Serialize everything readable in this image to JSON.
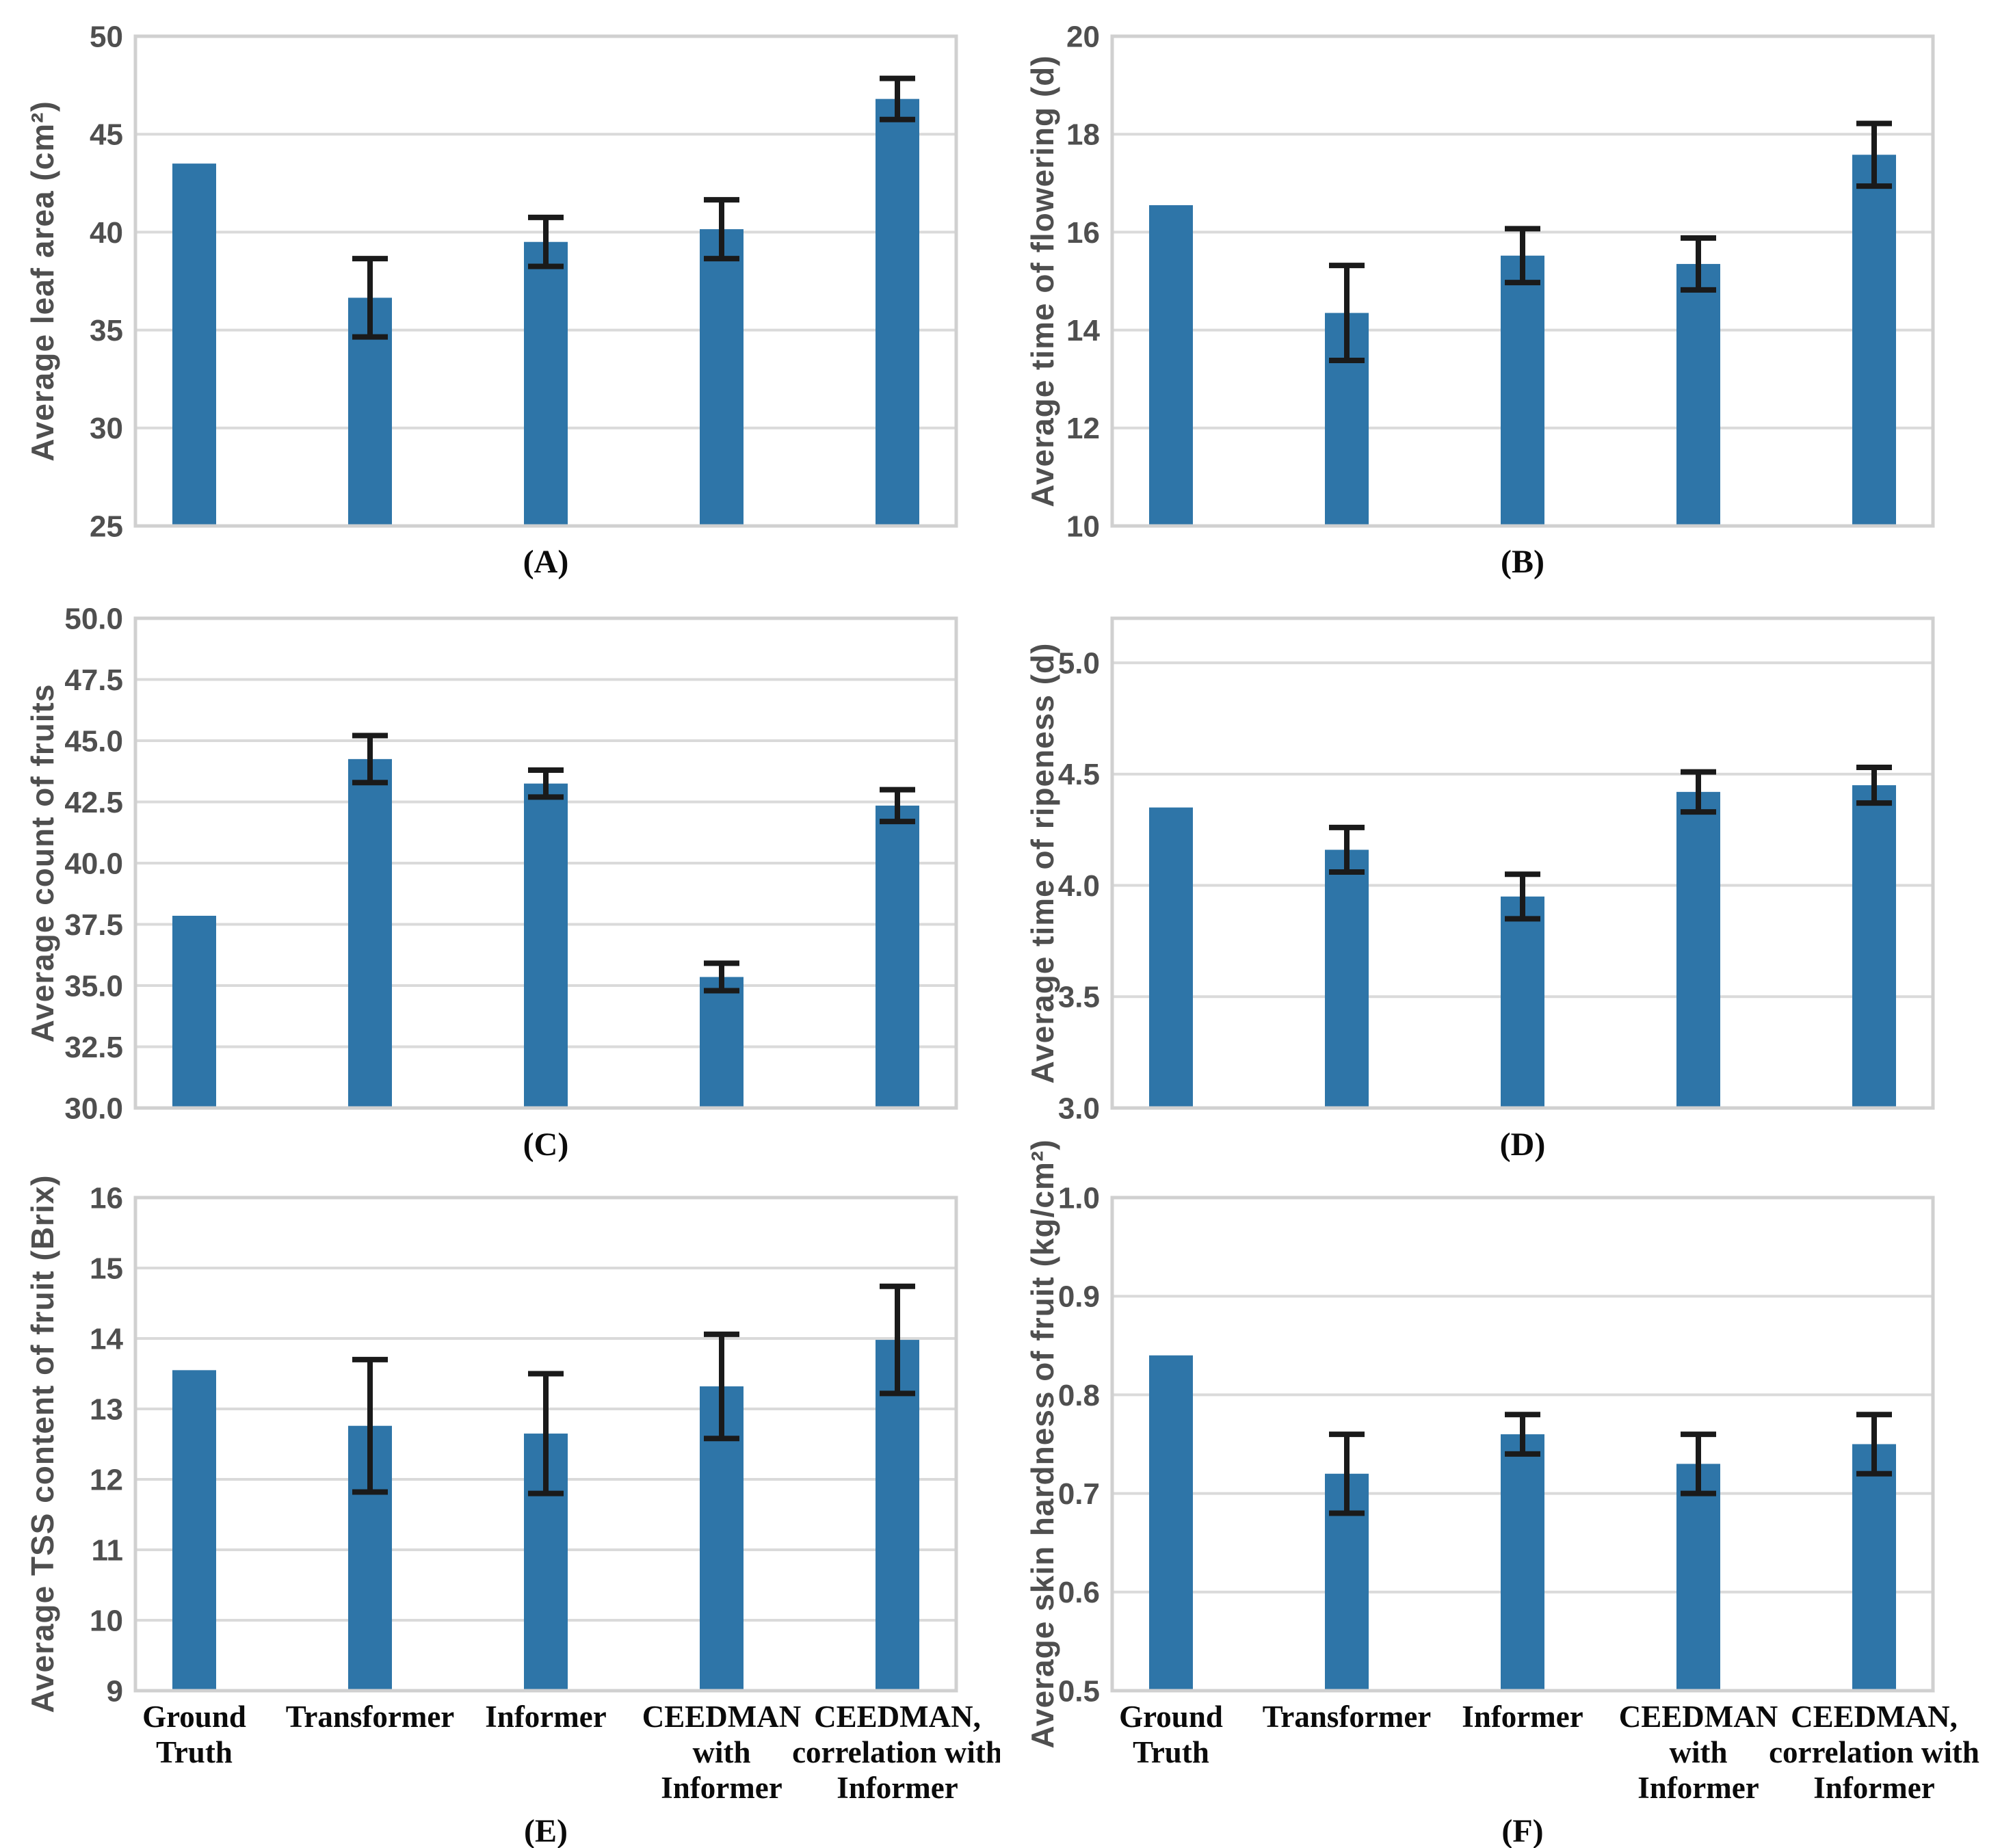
{
  "figure": {
    "background": "#ffffff",
    "bar_color": "#2e75a8",
    "error_bar_color": "#1a1a1a",
    "grid_color": "#dadada",
    "spine_color": "#d0d0d0",
    "tick_text_color": "#4f4f4f",
    "label_text_color": "#0b0b0b"
  },
  "categories": [
    "Ground Truth",
    "Transformer",
    "Informer",
    "CEEDMAN with Informer",
    "CEEDMAN, correlation with Informer"
  ],
  "category_label_lines": [
    [
      "Ground",
      "Truth"
    ],
    [
      "Transformer"
    ],
    [
      "Informer"
    ],
    [
      "CEEDMAN",
      "with",
      "Informer"
    ],
    [
      "CEEDMAN,",
      "correlation with",
      "Informer"
    ]
  ],
  "chart_data": [
    {
      "id": "A",
      "type": "bar",
      "caption": "(A)",
      "ylabel": "Average leaf area (cm²)",
      "categories": [
        "Ground Truth",
        "Transformer",
        "Informer",
        "CEEDMAN with Informer",
        "CEEDMAN, correlation with Informer"
      ],
      "values": [
        43.5,
        36.65,
        39.5,
        40.15,
        46.8
      ],
      "errors": [
        null,
        2.0,
        1.25,
        1.5,
        1.05
      ],
      "ylim": [
        25,
        50
      ],
      "yticks": [
        25,
        30,
        35,
        40,
        45,
        50
      ],
      "ytick_labels": [
        "25",
        "30",
        "35",
        "40",
        "45",
        "50"
      ],
      "grid": true,
      "legend": null
    },
    {
      "id": "B",
      "type": "bar",
      "caption": "(B)",
      "ylabel": "Average time of flowering (d)",
      "categories": [
        "Ground Truth",
        "Transformer",
        "Informer",
        "CEEDMAN with Informer",
        "CEEDMAN, correlation with Informer"
      ],
      "values": [
        16.55,
        14.35,
        15.52,
        15.35,
        17.58
      ],
      "errors": [
        null,
        0.97,
        0.55,
        0.53,
        0.64
      ],
      "ylim": [
        10,
        20
      ],
      "yticks": [
        10,
        12,
        14,
        16,
        18,
        20
      ],
      "ytick_labels": [
        "10",
        "12",
        "14",
        "16",
        "18",
        "20"
      ],
      "grid": true,
      "legend": null
    },
    {
      "id": "C",
      "type": "bar",
      "caption": "(C)",
      "ylabel": "Average count of fruits",
      "categories": [
        "Ground Truth",
        "Transformer",
        "Informer",
        "CEEDMAN with Informer",
        "CEEDMAN, correlation with Informer"
      ],
      "values": [
        37.85,
        44.25,
        43.25,
        35.35,
        42.35
      ],
      "errors": [
        null,
        0.96,
        0.55,
        0.56,
        0.65
      ],
      "ylim": [
        30,
        50
      ],
      "yticks": [
        30,
        32.5,
        35,
        37.5,
        40,
        42.5,
        45,
        47.5,
        50
      ],
      "ytick_labels": [
        "30.0",
        "32.5",
        "35.0",
        "37.5",
        "40.0",
        "42.5",
        "45.0",
        "47.5",
        "50.0"
      ],
      "grid": true,
      "legend": null
    },
    {
      "id": "D",
      "type": "bar",
      "caption": "(D)",
      "ylabel": "Average time of ripeness (d)",
      "categories": [
        "Ground Truth",
        "Transformer",
        "Informer",
        "CEEDMAN with Informer",
        "CEEDMAN, correlation with Informer"
      ],
      "values": [
        4.35,
        4.16,
        3.95,
        4.42,
        4.45
      ],
      "errors": [
        null,
        0.1,
        0.1,
        0.09,
        0.08
      ],
      "ylim": [
        3.0,
        5.2
      ],
      "yticks": [
        3.0,
        3.5,
        4.0,
        4.5,
        5.0
      ],
      "ytick_labels": [
        "3.0",
        "3.5",
        "4.0",
        "4.5",
        "5.0"
      ],
      "grid": true,
      "legend": null
    },
    {
      "id": "E",
      "type": "bar",
      "caption": "(E)",
      "ylabel": "Average TSS content of fruit (Brix)",
      "categories": [
        "Ground Truth",
        "Transformer",
        "Informer",
        "CEEDMAN with Informer",
        "CEEDMAN, correlation with Informer"
      ],
      "values": [
        13.55,
        12.76,
        12.65,
        13.32,
        13.98
      ],
      "errors": [
        null,
        0.94,
        0.85,
        0.74,
        0.76
      ],
      "ylim": [
        9,
        16
      ],
      "yticks": [
        9,
        10,
        11,
        12,
        13,
        14,
        15,
        16
      ],
      "ytick_labels": [
        "9",
        "10",
        "11",
        "12",
        "13",
        "14",
        "15",
        "16"
      ],
      "grid": true,
      "legend": null
    },
    {
      "id": "F",
      "type": "bar",
      "caption": "(F)",
      "ylabel": "Average skin hardness of fruit (kg/cm²)",
      "categories": [
        "Ground Truth",
        "Transformer",
        "Informer",
        "CEEDMAN with Informer",
        "CEEDMAN, correlation with Informer"
      ],
      "values": [
        0.84,
        0.72,
        0.76,
        0.73,
        0.75
      ],
      "errors": [
        null,
        0.04,
        0.02,
        0.03,
        0.03
      ],
      "ylim": [
        0.5,
        1.0
      ],
      "yticks": [
        0.5,
        0.6,
        0.7,
        0.8,
        0.9,
        1.0
      ],
      "ytick_labels": [
        "0.5",
        "0.6",
        "0.7",
        "0.8",
        "0.9",
        "1.0"
      ],
      "grid": true,
      "legend": null
    }
  ]
}
